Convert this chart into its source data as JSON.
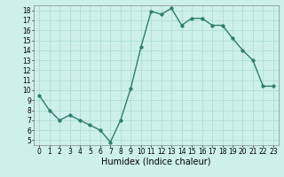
{
  "x": [
    0,
    1,
    2,
    3,
    4,
    5,
    6,
    7,
    8,
    9,
    10,
    11,
    12,
    13,
    14,
    15,
    16,
    17,
    18,
    19,
    20,
    21,
    22,
    23
  ],
  "y": [
    9.5,
    8.0,
    7.0,
    7.5,
    7.0,
    6.5,
    6.0,
    4.8,
    7.0,
    10.2,
    14.3,
    17.9,
    17.6,
    18.2,
    16.5,
    17.2,
    17.2,
    16.5,
    16.5,
    15.2,
    14.0,
    13.0,
    10.4,
    10.4
  ],
  "line_color": "#2e7d6e",
  "bg_color": "#cdf0eb",
  "grid_color": "#aad8d0",
  "xlabel": "Humidex (Indice chaleur)",
  "ylim": [
    4.5,
    18.5
  ],
  "xlim": [
    -0.5,
    23.5
  ],
  "yticks": [
    5,
    6,
    7,
    8,
    9,
    10,
    11,
    12,
    13,
    14,
    15,
    16,
    17,
    18
  ],
  "xticks": [
    0,
    1,
    2,
    3,
    4,
    5,
    6,
    7,
    8,
    9,
    10,
    11,
    12,
    13,
    14,
    15,
    16,
    17,
    18,
    19,
    20,
    21,
    22,
    23
  ],
  "marker_size": 2.5,
  "line_width": 1.0,
  "xlabel_fontsize": 7,
  "tick_fontsize": 5.5
}
